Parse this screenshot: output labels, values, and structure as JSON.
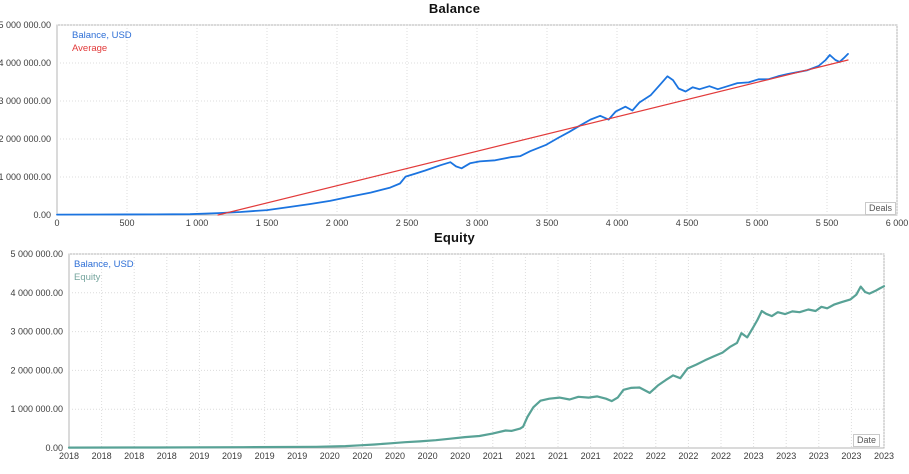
{
  "chart_data": [
    {
      "type": "line",
      "title": "Balance",
      "xlabel": "Deals",
      "ylabel": "",
      "grid": true,
      "legend_position": "top-left",
      "legend": [
        "Balance, USD",
        "Average"
      ],
      "x_axis": {
        "min": 0,
        "max": 6000,
        "tick_labels": [
          "0",
          "500",
          "1 000",
          "1 500",
          "2 000",
          "2 500",
          "3 000",
          "3 500",
          "4 000",
          "4 500",
          "5 000",
          "5 500",
          "6 000"
        ]
      },
      "y_axis": {
        "min": 0,
        "max": 5000000,
        "tick_labels": [
          "0.00",
          "1 000 000.00",
          "2 000 000.00",
          "3 000 000.00",
          "4 000 000.00",
          "5 000 000.00"
        ]
      },
      "series": [
        {
          "name": "Balance, USD",
          "color": "#1b74e0",
          "points": [
            [
              0,
              10000
            ],
            [
              300,
              12000
            ],
            [
              700,
              15000
            ],
            [
              950,
              20000
            ],
            [
              1150,
              50000
            ],
            [
              1310,
              80000
            ],
            [
              1500,
              130000
            ],
            [
              1660,
              210000
            ],
            [
              1810,
              290000
            ],
            [
              1950,
              370000
            ],
            [
              2090,
              480000
            ],
            [
              2240,
              590000
            ],
            [
              2380,
              720000
            ],
            [
              2450,
              830000
            ],
            [
              2490,
              1010000
            ],
            [
              2560,
              1090000
            ],
            [
              2630,
              1170000
            ],
            [
              2740,
              1310000
            ],
            [
              2810,
              1390000
            ],
            [
              2850,
              1280000
            ],
            [
              2890,
              1230000
            ],
            [
              2950,
              1360000
            ],
            [
              3020,
              1410000
            ],
            [
              3130,
              1440000
            ],
            [
              3240,
              1520000
            ],
            [
              3310,
              1550000
            ],
            [
              3380,
              1680000
            ],
            [
              3490,
              1840000
            ],
            [
              3580,
              2030000
            ],
            [
              3660,
              2190000
            ],
            [
              3720,
              2320000
            ],
            [
              3810,
              2510000
            ],
            [
              3880,
              2610000
            ],
            [
              3940,
              2510000
            ],
            [
              3990,
              2720000
            ],
            [
              4060,
              2850000
            ],
            [
              4110,
              2750000
            ],
            [
              4160,
              2960000
            ],
            [
              4240,
              3150000
            ],
            [
              4310,
              3440000
            ],
            [
              4360,
              3650000
            ],
            [
              4400,
              3550000
            ],
            [
              4440,
              3330000
            ],
            [
              4490,
              3250000
            ],
            [
              4540,
              3360000
            ],
            [
              4590,
              3310000
            ],
            [
              4660,
              3390000
            ],
            [
              4720,
              3310000
            ],
            [
              4790,
              3390000
            ],
            [
              4860,
              3470000
            ],
            [
              4940,
              3490000
            ],
            [
              5010,
              3570000
            ],
            [
              5080,
              3570000
            ],
            [
              5150,
              3650000
            ],
            [
              5220,
              3710000
            ],
            [
              5290,
              3760000
            ],
            [
              5360,
              3810000
            ],
            [
              5440,
              3920000
            ],
            [
              5490,
              4080000
            ],
            [
              5520,
              4210000
            ],
            [
              5560,
              4080000
            ],
            [
              5590,
              4030000
            ],
            [
              5620,
              4130000
            ],
            [
              5650,
              4240000
            ]
          ]
        },
        {
          "name": "Average",
          "color": "#e23b3b",
          "points": [
            [
              1150,
              0
            ],
            [
              5650,
              4080000
            ]
          ]
        }
      ]
    },
    {
      "type": "line",
      "title": "Equity",
      "xlabel": "Date",
      "ylabel": "",
      "grid": true,
      "legend_position": "top-left",
      "legend": [
        "Balance, USD",
        "Equity"
      ],
      "x_axis": {
        "min": 2018.0,
        "max": 2023.6,
        "tick_labels": [
          "2018",
          "2018",
          "2018",
          "2018",
          "2019",
          "2019",
          "2019",
          "2019",
          "2020",
          "2020",
          "2020",
          "2020",
          "2020",
          "2021",
          "2021",
          "2021",
          "2021",
          "2022",
          "2022",
          "2022",
          "2022",
          "2023",
          "2023",
          "2023",
          "2023",
          "2023"
        ]
      },
      "y_axis": {
        "min": 0,
        "max": 5000000,
        "tick_labels": [
          "0.00",
          "1 000 000.00",
          "2 000 000.00",
          "3 000 000.00",
          "4 000 000.00",
          "5 000 000.00"
        ]
      },
      "series": [
        {
          "name": "Equity",
          "color": "#58a296",
          "points": [
            [
              2018.0,
              10000
            ],
            [
              2018.6,
              12000
            ],
            [
              2019.2,
              20000
            ],
            [
              2019.7,
              30000
            ],
            [
              2019.9,
              50000
            ],
            [
              2020.0,
              70000
            ],
            [
              2020.1,
              90000
            ],
            [
              2020.21,
              120000
            ],
            [
              2020.31,
              150000
            ],
            [
              2020.41,
              170000
            ],
            [
              2020.52,
              200000
            ],
            [
              2020.62,
              240000
            ],
            [
              2020.72,
              280000
            ],
            [
              2020.82,
              310000
            ],
            [
              2020.91,
              370000
            ],
            [
              2021.0,
              450000
            ],
            [
              2021.04,
              440000
            ],
            [
              2021.1,
              500000
            ],
            [
              2021.12,
              550000
            ],
            [
              2021.15,
              800000
            ],
            [
              2021.19,
              1050000
            ],
            [
              2021.24,
              1220000
            ],
            [
              2021.3,
              1270000
            ],
            [
              2021.37,
              1300000
            ],
            [
              2021.44,
              1250000
            ],
            [
              2021.5,
              1320000
            ],
            [
              2021.57,
              1300000
            ],
            [
              2021.63,
              1330000
            ],
            [
              2021.69,
              1270000
            ],
            [
              2021.73,
              1210000
            ],
            [
              2021.77,
              1300000
            ],
            [
              2021.81,
              1500000
            ],
            [
              2021.86,
              1550000
            ],
            [
              2021.92,
              1560000
            ],
            [
              2021.99,
              1420000
            ],
            [
              2022.05,
              1620000
            ],
            [
              2022.1,
              1750000
            ],
            [
              2022.15,
              1870000
            ],
            [
              2022.2,
              1800000
            ],
            [
              2022.25,
              2050000
            ],
            [
              2022.31,
              2150000
            ],
            [
              2022.37,
              2260000
            ],
            [
              2022.43,
              2360000
            ],
            [
              2022.49,
              2460000
            ],
            [
              2022.54,
              2600000
            ],
            [
              2022.59,
              2710000
            ],
            [
              2022.62,
              2960000
            ],
            [
              2022.66,
              2850000
            ],
            [
              2022.7,
              3100000
            ],
            [
              2022.73,
              3300000
            ],
            [
              2022.76,
              3530000
            ],
            [
              2022.79,
              3460000
            ],
            [
              2022.83,
              3400000
            ],
            [
              2022.87,
              3500000
            ],
            [
              2022.92,
              3450000
            ],
            [
              2022.97,
              3520000
            ],
            [
              2023.02,
              3500000
            ],
            [
              2023.08,
              3570000
            ],
            [
              2023.13,
              3530000
            ],
            [
              2023.17,
              3640000
            ],
            [
              2023.21,
              3600000
            ],
            [
              2023.26,
              3700000
            ],
            [
              2023.31,
              3760000
            ],
            [
              2023.37,
              3830000
            ],
            [
              2023.41,
              3950000
            ],
            [
              2023.44,
              4160000
            ],
            [
              2023.47,
              4020000
            ],
            [
              2023.5,
              3980000
            ],
            [
              2023.54,
              4050000
            ],
            [
              2023.57,
              4110000
            ],
            [
              2023.6,
              4170000
            ]
          ]
        }
      ]
    }
  ],
  "colors": {
    "balance_line": "#1b74e0",
    "average_line": "#e23b3b",
    "equity_line": "#58a296",
    "grid": "#dcdcdc",
    "plot_border": "#b6b6b6",
    "tick_text": "#3c3c3c"
  }
}
